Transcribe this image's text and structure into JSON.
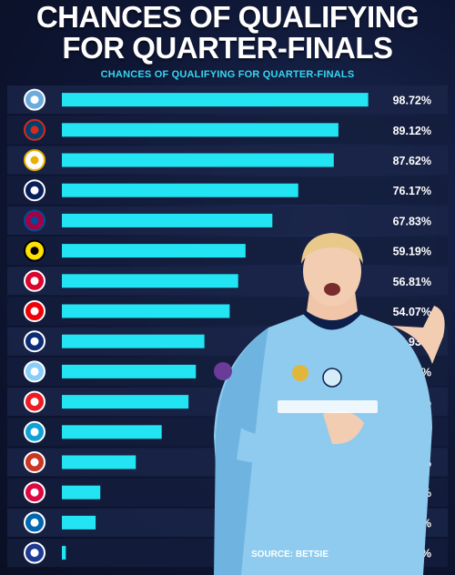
{
  "headline": {
    "line1": "CHANCES OF QUALIFYING",
    "line2": "FOR QUARTER-FINALS"
  },
  "source": "SOURCE: BETSIE",
  "colors": {
    "bar": "#22e4f2",
    "background": "#0e1634",
    "subtitle": "#35d6f0",
    "label": "#ffffff"
  },
  "chart_data": {
    "type": "bar",
    "orientation": "horizontal",
    "title": "CHANCES OF QUALIFYING FOR QUARTER-FINALS",
    "categories": [
      "manchester-city-crest",
      "psg-crest",
      "real-madrid-crest",
      "inter-crest",
      "barcelona-crest",
      "dortmund-crest",
      "bayern-crest",
      "arsenal-crest",
      "porto-crest",
      "lazio-crest",
      "psv-crest",
      "napoli-crest",
      "atletico-crest",
      "leipzig-crest",
      "real-sociedad-crest",
      "copenhagen-crest"
    ],
    "values": [
      98.72,
      89.12,
      87.62,
      76.17,
      67.83,
      59.19,
      56.81,
      54.07,
      45.93,
      43.19,
      40.81,
      32.17,
      23.83,
      12.38,
      10.88,
      1.28
    ],
    "labels": [
      "98.72%",
      "89.12%",
      "87.62%",
      "76.17%",
      "67.83%",
      "59.19%",
      "56.81%",
      "54.07%",
      "45.93%",
      "43.19%",
      "40.81%",
      "32.17%",
      "23.83%",
      "12.38%",
      "10.88%",
      "1.28%"
    ],
    "xlim": [
      0,
      100
    ],
    "grid": false,
    "legend": "none",
    "crest_colors": [
      [
        "#6cabdd",
        "#ffffff"
      ],
      [
        "#004170",
        "#da291c"
      ],
      [
        "#ffffff",
        "#e8b100"
      ],
      [
        "#0a1e5c",
        "#ffffff"
      ],
      [
        "#a50044",
        "#004d98"
      ],
      [
        "#fde100",
        "#000000"
      ],
      [
        "#dc052d",
        "#ffffff"
      ],
      [
        "#ef0107",
        "#ffffff"
      ],
      [
        "#0b2d78",
        "#ffffff"
      ],
      [
        "#87cefa",
        "#ffffff"
      ],
      [
        "#ed1c24",
        "#ffffff"
      ],
      [
        "#12a0d7",
        "#ffffff"
      ],
      [
        "#cb3524",
        "#ffffff"
      ],
      [
        "#dd0741",
        "#ffffff"
      ],
      [
        "#0067b1",
        "#ffffff"
      ],
      [
        "#1f3a93",
        "#ffffff"
      ]
    ]
  }
}
